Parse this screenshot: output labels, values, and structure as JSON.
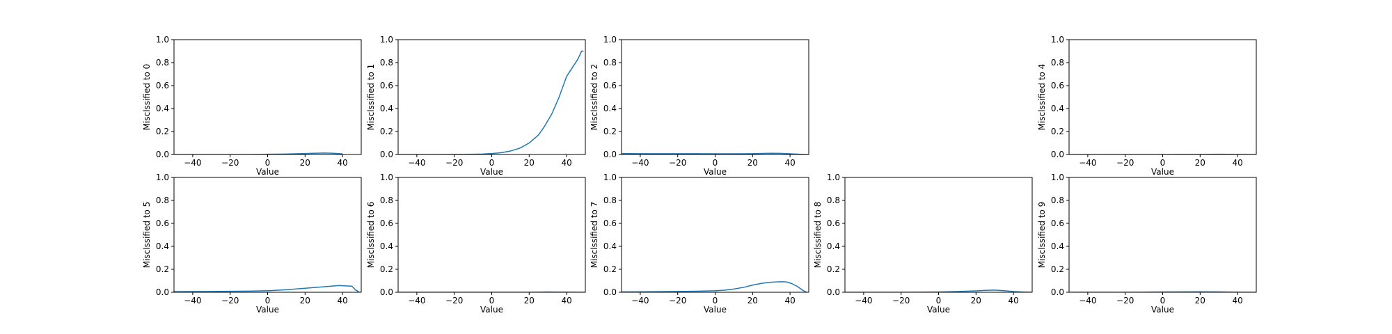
{
  "style": {
    "line_color": "#1f77b4",
    "axis_color": "#000000"
  },
  "chart_data": [
    {
      "type": "line",
      "ylabel": "Misclssified to 0",
      "xlabel": "Value",
      "xlim": [
        -50,
        50
      ],
      "ylim": [
        0,
        1
      ],
      "xticks": [
        -40,
        -20,
        0,
        20,
        40
      ],
      "yticks": [
        0.0,
        0.2,
        0.4,
        0.6,
        0.8,
        1.0
      ],
      "x": [
        -50,
        -40,
        -30,
        -20,
        -10,
        0,
        10,
        15,
        20,
        25,
        30,
        35,
        40
      ],
      "y": [
        0.0,
        0.0,
        0.0,
        0.0,
        0.0,
        0.002,
        0.004,
        0.006,
        0.008,
        0.011,
        0.013,
        0.011,
        0.005
      ]
    },
    {
      "type": "line",
      "ylabel": "Misclssified to 1",
      "xlabel": "Value",
      "xlim": [
        -50,
        50
      ],
      "ylim": [
        0,
        1
      ],
      "xticks": [
        -40,
        -20,
        0,
        20,
        40
      ],
      "yticks": [
        0.0,
        0.2,
        0.4,
        0.6,
        0.8,
        1.0
      ],
      "x": [
        -50,
        -40,
        -30,
        -20,
        -10,
        -5,
        0,
        5,
        10,
        15,
        20,
        25,
        28,
        32,
        36,
        40,
        44,
        46,
        48,
        49
      ],
      "y": [
        0.0,
        0.0,
        0.0,
        0.001,
        0.002,
        0.004,
        0.008,
        0.015,
        0.03,
        0.055,
        0.1,
        0.17,
        0.24,
        0.35,
        0.5,
        0.68,
        0.78,
        0.83,
        0.9,
        0.9
      ]
    },
    {
      "type": "line",
      "ylabel": "Misclssified to 2",
      "xlabel": "Value",
      "xlim": [
        -50,
        50
      ],
      "ylim": [
        0,
        1
      ],
      "xticks": [
        -40,
        -20,
        0,
        20,
        40
      ],
      "yticks": [
        0.0,
        0.2,
        0.4,
        0.6,
        0.8,
        1.0
      ],
      "x": [
        -50,
        -40,
        -30,
        -20,
        -10,
        0,
        10,
        20,
        25,
        30,
        35,
        40,
        45,
        50
      ],
      "y": [
        0.008,
        0.007,
        0.007,
        0.007,
        0.007,
        0.006,
        0.006,
        0.007,
        0.009,
        0.011,
        0.01,
        0.006,
        0.002,
        0.0
      ]
    },
    {
      "type": "line",
      "ylabel": "Misclssified to 4",
      "xlabel": "Value",
      "xlim": [
        -50,
        50
      ],
      "ylim": [
        0,
        1
      ],
      "xticks": [
        -40,
        -20,
        0,
        20,
        40
      ],
      "yticks": [
        0.0,
        0.2,
        0.4,
        0.6,
        0.8,
        1.0
      ],
      "x": [
        -50,
        -40,
        -30,
        -20,
        -10,
        0,
        10,
        20,
        30,
        40,
        50
      ],
      "y": [
        0.0,
        0.0,
        0.0,
        0.0,
        0.0,
        0.0,
        0.001,
        0.001,
        0.002,
        0.001,
        0.0
      ]
    },
    {
      "type": "line",
      "ylabel": "Misclssified to 5",
      "xlabel": "Value",
      "xlim": [
        -50,
        50
      ],
      "ylim": [
        0,
        1
      ],
      "xticks": [
        -40,
        -20,
        0,
        20,
        40
      ],
      "yticks": [
        0.0,
        0.2,
        0.4,
        0.6,
        0.8,
        1.0
      ],
      "x": [
        -50,
        -40,
        -30,
        -20,
        -10,
        0,
        10,
        20,
        30,
        38,
        42,
        45,
        47,
        49
      ],
      "y": [
        0.005,
        0.006,
        0.007,
        0.008,
        0.01,
        0.013,
        0.022,
        0.035,
        0.048,
        0.058,
        0.055,
        0.053,
        0.02,
        0.0
      ]
    },
    {
      "type": "line",
      "ylabel": "Misclssified to 6",
      "xlabel": "Value",
      "xlim": [
        -50,
        50
      ],
      "ylim": [
        0,
        1
      ],
      "xticks": [
        -40,
        -20,
        0,
        20,
        40
      ],
      "yticks": [
        0.0,
        0.2,
        0.4,
        0.6,
        0.8,
        1.0
      ],
      "x": [
        -50,
        -40,
        -30,
        -20,
        -10,
        0,
        10,
        20,
        30,
        40,
        50
      ],
      "y": [
        0.0,
        0.0,
        0.0,
        0.0,
        0.0,
        0.0,
        0.0,
        0.0,
        0.002,
        0.001,
        0.0
      ]
    },
    {
      "type": "line",
      "ylabel": "Misclssified to 7",
      "xlabel": "Value",
      "xlim": [
        -50,
        50
      ],
      "ylim": [
        0,
        1
      ],
      "xticks": [
        -40,
        -20,
        0,
        20,
        40
      ],
      "yticks": [
        0.0,
        0.2,
        0.4,
        0.6,
        0.8,
        1.0
      ],
      "x": [
        -50,
        -40,
        -30,
        -20,
        -10,
        0,
        5,
        10,
        15,
        20,
        25,
        30,
        35,
        38,
        41,
        44,
        47,
        49
      ],
      "y": [
        0.003,
        0.004,
        0.005,
        0.007,
        0.009,
        0.013,
        0.018,
        0.028,
        0.042,
        0.062,
        0.078,
        0.088,
        0.092,
        0.09,
        0.075,
        0.05,
        0.015,
        0.0
      ]
    },
    {
      "type": "line",
      "ylabel": "Misclssified to 8",
      "xlabel": "Value",
      "xlim": [
        -50,
        50
      ],
      "ylim": [
        0,
        1
      ],
      "xticks": [
        -40,
        -20,
        0,
        20,
        40
      ],
      "yticks": [
        0.0,
        0.2,
        0.4,
        0.6,
        0.8,
        1.0
      ],
      "x": [
        -50,
        -40,
        -30,
        -20,
        -10,
        0,
        10,
        20,
        25,
        30,
        35,
        40,
        45,
        50
      ],
      "y": [
        0.0,
        0.0,
        0.0,
        0.0,
        0.001,
        0.002,
        0.006,
        0.012,
        0.017,
        0.019,
        0.014,
        0.006,
        0.002,
        0.0
      ]
    },
    {
      "type": "line",
      "ylabel": "Misclssified to 9",
      "xlabel": "Value",
      "xlim": [
        -50,
        50
      ],
      "ylim": [
        0,
        1
      ],
      "xticks": [
        -40,
        -20,
        0,
        20,
        40
      ],
      "yticks": [
        0.0,
        0.2,
        0.4,
        0.6,
        0.8,
        1.0
      ],
      "x": [
        -50,
        -40,
        -30,
        -20,
        -10,
        0,
        10,
        20,
        30,
        40,
        50
      ],
      "y": [
        0.0,
        0.0,
        0.0,
        0.0,
        0.001,
        0.002,
        0.003,
        0.004,
        0.003,
        0.001,
        0.0
      ]
    }
  ]
}
